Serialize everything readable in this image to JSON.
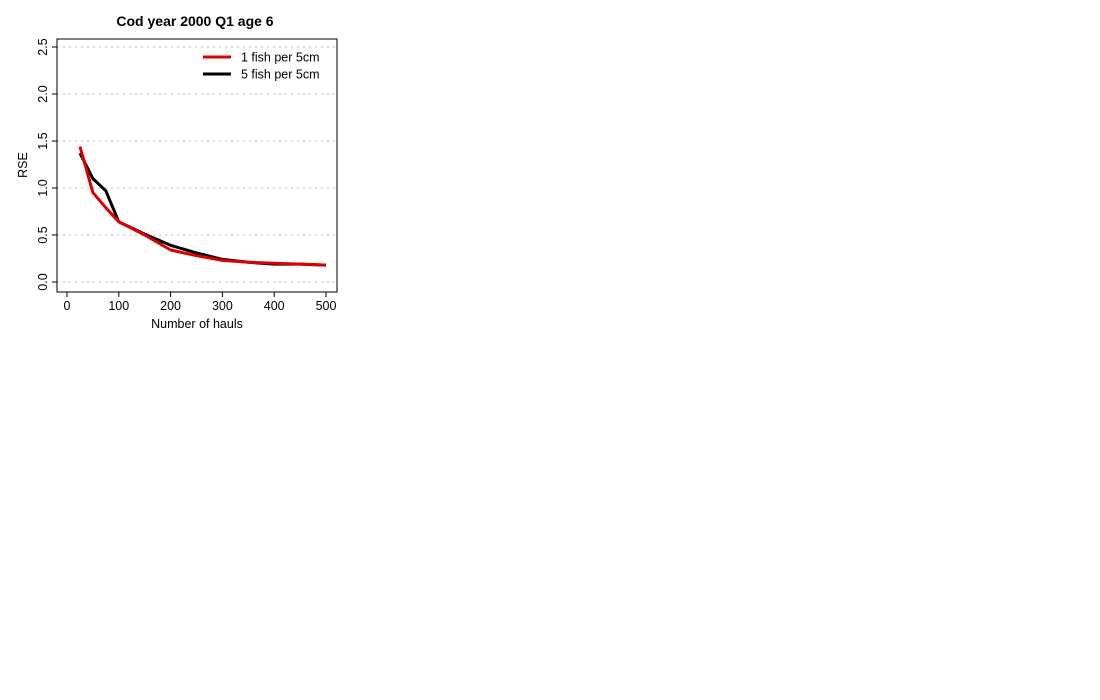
{
  "chart_data": {
    "type": "line",
    "title": "Cod year 2000 Q1 age 6",
    "xlabel": "Number of hauls",
    "ylabel": "RSE",
    "xlim": [
      0,
      500
    ],
    "ylim": [
      0,
      2.5
    ],
    "x_ticks": [
      0,
      100,
      200,
      300,
      400,
      500
    ],
    "x_tick_labels": [
      "0",
      "100",
      "200",
      "300",
      "400",
      "500"
    ],
    "y_ticks": [
      0,
      0.5,
      1.0,
      1.5,
      2.0,
      2.5
    ],
    "y_tick_labels": [
      "0.0",
      "0.5",
      "1.0",
      "1.5",
      "2.0",
      "2.5"
    ],
    "grid": "horizontal dotted",
    "legend_position": "top-right",
    "series": [
      {
        "name": "5 fish per 5cm",
        "color": "#000000",
        "x": [
          25,
          50,
          75,
          100,
          150,
          200,
          250,
          300,
          350,
          400,
          450,
          500
        ],
        "y": [
          1.37,
          1.1,
          0.97,
          0.64,
          0.51,
          0.39,
          0.31,
          0.24,
          0.21,
          0.19,
          0.19,
          0.18
        ]
      },
      {
        "name": "1 fish per 5cm",
        "color": "#dd0000",
        "x": [
          25,
          50,
          75,
          100,
          150,
          200,
          250,
          300,
          350,
          400,
          450,
          500
        ],
        "y": [
          1.44,
          0.95,
          0.79,
          0.64,
          0.5,
          0.34,
          0.28,
          0.23,
          0.21,
          0.2,
          0.19,
          0.18
        ]
      }
    ],
    "legend_order": [
      1,
      0
    ]
  }
}
